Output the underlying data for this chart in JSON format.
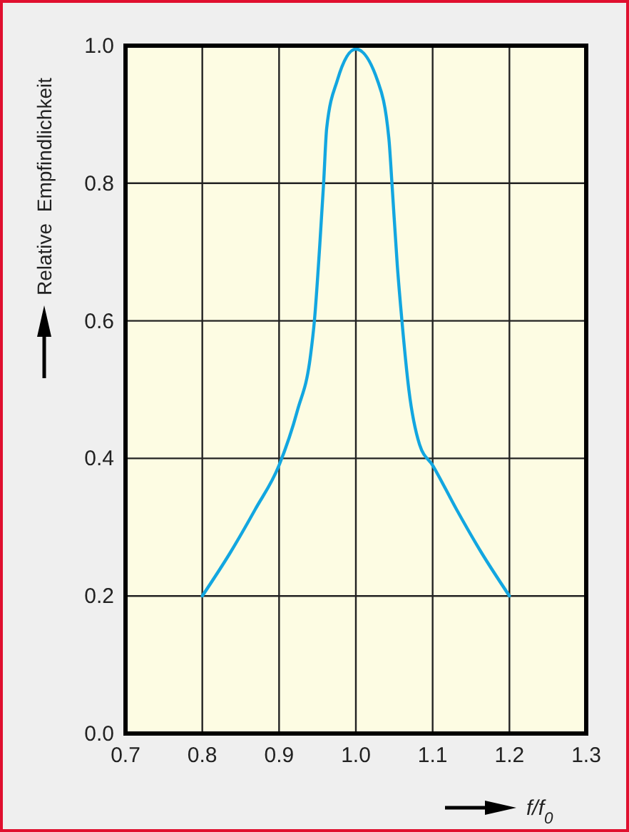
{
  "chart_data": {
    "type": "line",
    "xlabel": "f/f$_{0}$",
    "ylabel": "Relative  Empfindlichkeit",
    "series": [
      {
        "color": "#12a6e0",
        "x": [
          0.8,
          0.837,
          0.869,
          0.9,
          0.924,
          0.941,
          0.946,
          0.953,
          0.958,
          0.962,
          0.976,
          1.0,
          1.028,
          1.043,
          1.047,
          1.054,
          1.06,
          1.069,
          1.083,
          1.1,
          1.131,
          1.163,
          1.2
        ],
        "values": [
          0.2,
          0.264,
          0.326,
          0.39,
          0.47,
          0.55,
          0.6,
          0.71,
          0.8,
          0.88,
          0.95,
          0.995,
          0.95,
          0.865,
          0.8,
          0.68,
          0.6,
          0.5,
          0.42,
          0.39,
          0.326,
          0.264,
          0.2
        ]
      }
    ],
    "xlim": [
      0.7,
      1.3
    ],
    "xticks": [
      {
        "value": 0.7,
        "label": "0.7"
      },
      {
        "value": 0.8,
        "label": "0.8"
      },
      {
        "value": 0.9,
        "label": "0.9"
      },
      {
        "value": 1.0,
        "label": "1.0"
      },
      {
        "value": 1.1,
        "label": "1.1"
      },
      {
        "value": 1.2,
        "label": "1.2"
      },
      {
        "value": 1.3,
        "label": "1.3"
      }
    ],
    "ylim": [
      0,
      1
    ],
    "yticks": [
      {
        "value": 0,
        "label": "0.0"
      },
      {
        "value": 0.2,
        "label": "0.2"
      },
      {
        "value": 0.4,
        "label": "0.4"
      },
      {
        "value": 0.6,
        "label": "0.6"
      },
      {
        "value": 0.8,
        "label": "0.8"
      },
      {
        "value": 1.0,
        "label": "1.0"
      }
    ],
    "grid": true,
    "marker": "none",
    "line_style": "solid"
  }
}
